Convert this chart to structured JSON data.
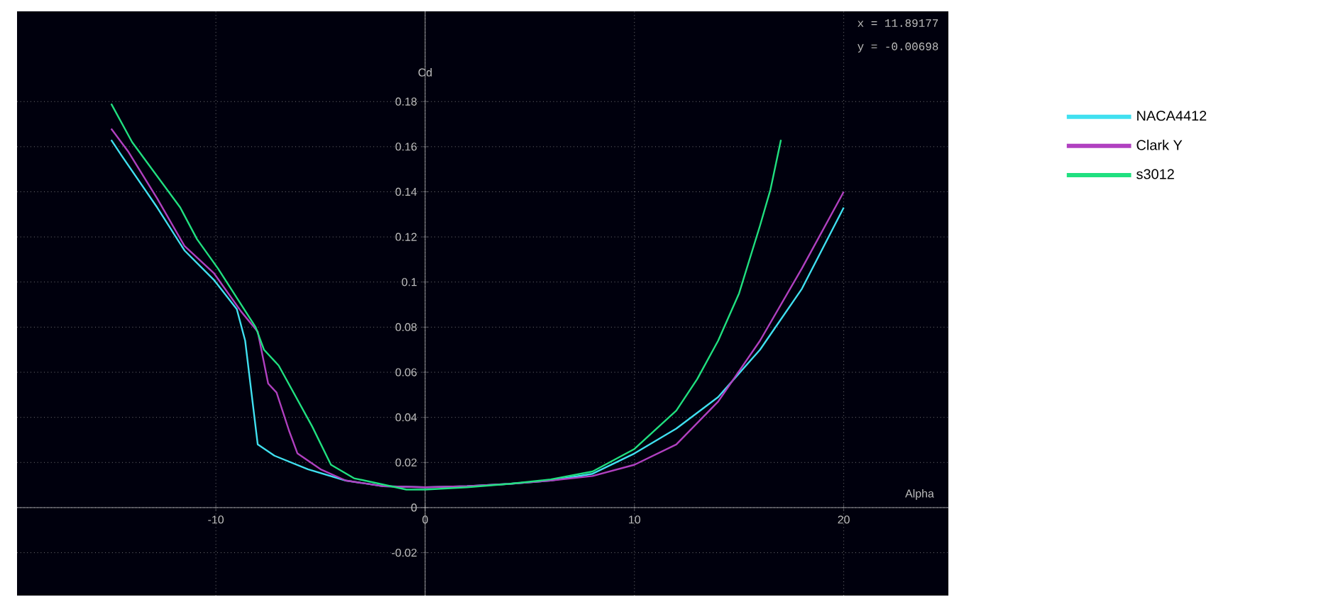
{
  "chart_data": {
    "type": "line",
    "xlabel": "Alpha",
    "ylabel": "Cd",
    "annotations": [
      "x =  11.89177",
      "y =  -0.00698"
    ],
    "xlim": [
      -19.5,
      25
    ],
    "ylim": [
      -0.039,
      0.22
    ],
    "xticks": [
      -10,
      0,
      10,
      20
    ],
    "yticks": [
      -0.02,
      0,
      0.02,
      0.04,
      0.06,
      0.08,
      0.1,
      0.12,
      0.14,
      0.16,
      0.18
    ],
    "grid": true,
    "legend": "right",
    "marker": "none",
    "line_style": "solid",
    "series": [
      {
        "name": "NACA4412",
        "color": "#40e0f0",
        "x": [
          -15,
          -14.5,
          -12.8,
          -11.5,
          -10.1,
          -9,
          -8.6,
          -8,
          -7.2,
          -5.6,
          -3.8,
          -2,
          0,
          2,
          4,
          6,
          8,
          10,
          12,
          14,
          16,
          18,
          20
        ],
        "values": [
          0.163,
          0.156,
          0.133,
          0.114,
          0.101,
          0.088,
          0.074,
          0.028,
          0.023,
          0.017,
          0.012,
          0.0095,
          0.009,
          0.0095,
          0.0105,
          0.012,
          0.015,
          0.024,
          0.035,
          0.049,
          0.07,
          0.097,
          0.133
        ]
      },
      {
        "name": "Clark Y",
        "color": "#b040c0",
        "x": [
          -15,
          -14.2,
          -12.8,
          -11.5,
          -10.1,
          -8.8,
          -8,
          -7.5,
          -7.1,
          -6.5,
          -6.1,
          -5,
          -3.8,
          -2,
          0,
          2,
          4,
          6,
          8,
          10,
          12,
          14,
          16,
          18,
          20
        ],
        "values": [
          0.168,
          0.158,
          0.137,
          0.116,
          0.104,
          0.087,
          0.078,
          0.055,
          0.051,
          0.034,
          0.024,
          0.017,
          0.012,
          0.0095,
          0.009,
          0.0095,
          0.0105,
          0.012,
          0.014,
          0.019,
          0.028,
          0.047,
          0.074,
          0.106,
          0.14
        ]
      },
      {
        "name": "s3012",
        "color": "#20e080",
        "x": [
          -15,
          -14,
          -11.7,
          -10.9,
          -9.9,
          -9,
          -8.1,
          -7.7,
          -7,
          -5.4,
          -4.5,
          -3.4,
          -0.9,
          0,
          2,
          4,
          6,
          8,
          10,
          12,
          13,
          14,
          15,
          16,
          16.5,
          17
        ],
        "values": [
          0.179,
          0.162,
          0.133,
          0.119,
          0.106,
          0.093,
          0.08,
          0.07,
          0.063,
          0.036,
          0.019,
          0.013,
          0.008,
          0.008,
          0.009,
          0.0105,
          0.0125,
          0.016,
          0.026,
          0.043,
          0.057,
          0.074,
          0.095,
          0.125,
          0.141,
          0.163
        ]
      }
    ]
  }
}
